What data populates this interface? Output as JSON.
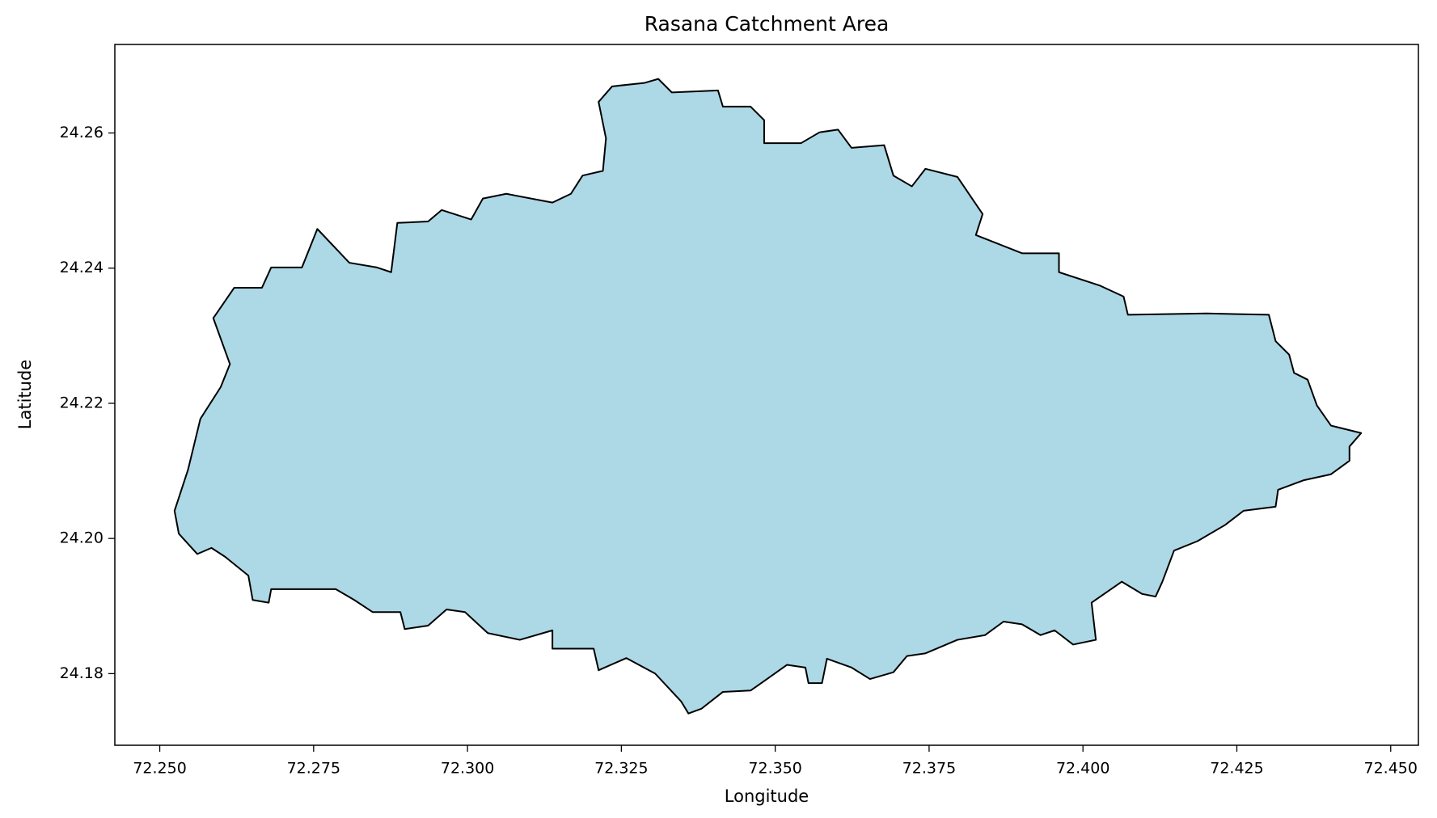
{
  "chart_data": {
    "type": "polygon",
    "title": "Rasana Catchment Area",
    "xlabel": "Longitude",
    "ylabel": "Latitude",
    "facecolor": "#add8e6",
    "edgecolor": "#000000",
    "xlim": [
      72.2427,
      72.4545
    ],
    "ylim": [
      24.1694,
      24.2731
    ],
    "xticks": [
      {
        "value": 72.25,
        "label": "72.250"
      },
      72.275,
      {
        "value": 72.3,
        "label": "72.300"
      },
      72.325,
      {
        "value": 72.35,
        "label": "72.350"
      },
      72.375,
      {
        "value": 72.4,
        "label": "72.400"
      },
      72.425,
      {
        "value": 72.45,
        "label": "72.450"
      }
    ],
    "yticks": [
      24.18,
      {
        "value": 24.2,
        "label": "24.20"
      },
      24.22,
      24.24,
      24.26
    ],
    "x": [
      72.2524,
      72.2546,
      72.2566,
      72.2599,
      72.2614,
      72.2587,
      72.2621,
      72.2666,
      72.2681,
      72.2731,
      72.2756,
      72.2808,
      72.2853,
      72.2876,
      72.2886,
      72.2936,
      72.2958,
      72.3006,
      72.3025,
      72.3063,
      72.3138,
      72.3168,
      72.3187,
      72.322,
      72.3225,
      72.3213,
      72.3235,
      72.3287,
      72.331,
      72.3332,
      72.3407,
      72.3415,
      72.346,
      72.3482,
      72.3482,
      72.3542,
      72.3572,
      72.3602,
      72.3624,
      72.3677,
      72.3692,
      72.3722,
      72.3744,
      72.3796,
      72.3837,
      72.3826,
      72.3901,
      72.3961,
      72.3961,
      72.4028,
      72.4066,
      72.4073,
      72.4201,
      72.4302,
      72.4313,
      72.4335,
      72.4343,
      72.4365,
      72.438,
      72.4403,
      72.4452,
      72.4433,
      72.4433,
      72.4403,
      72.4358,
      72.4317,
      72.4313,
      72.4261,
      72.4231,
      72.4186,
      72.4148,
      72.4129,
      72.4118,
      72.4096,
      72.4063,
      72.4014,
      72.4021,
      72.3984,
      72.3954,
      72.3931,
      72.3901,
      72.3871,
      72.3841,
      72.3796,
      72.3744,
      72.3714,
      72.3692,
      72.3654,
      72.3624,
      72.3584,
      72.3576,
      72.3554,
      72.3549,
      72.3519,
      72.3482,
      72.346,
      72.3415,
      72.338,
      72.3359,
      72.3347,
      72.3305,
      72.3258,
      72.3213,
      72.3205,
      72.3138,
      72.3138,
      72.3085,
      72.3033,
      72.2996,
      72.2966,
      72.2936,
      72.2898,
      72.2891,
      72.2846,
      72.2816,
      72.2786,
      72.2711,
      72.2681,
      72.2677,
      72.2651,
      72.2644,
      72.2606,
      72.2584,
      72.2561,
      72.2531
    ],
    "y": [
      24.2041,
      24.2102,
      24.2177,
      24.2224,
      24.2258,
      24.2326,
      24.2371,
      24.2371,
      24.2401,
      24.2401,
      24.2458,
      24.2408,
      24.2401,
      24.2394,
      24.2467,
      24.2469,
      24.2486,
      24.2472,
      24.2503,
      24.251,
      24.2497,
      24.251,
      24.2537,
      24.2544,
      24.2592,
      24.2646,
      24.2669,
      24.2674,
      24.268,
      24.266,
      24.2663,
      24.2639,
      24.2639,
      24.2619,
      24.2585,
      24.2585,
      24.2601,
      24.2605,
      24.2578,
      24.2582,
      24.2537,
      24.2521,
      24.2547,
      24.2535,
      24.248,
      24.2449,
      24.2422,
      24.2422,
      24.2394,
      24.2374,
      24.2358,
      24.2331,
      24.2333,
      24.2331,
      24.2292,
      24.2272,
      24.2245,
      24.2235,
      24.2197,
      24.2167,
      24.2156,
      24.2136,
      24.2115,
      24.2095,
      24.2086,
      24.2072,
      24.2047,
      24.2041,
      24.202,
      24.1996,
      24.1982,
      24.1936,
      24.1914,
      24.1918,
      24.1936,
      24.1905,
      24.185,
      24.1843,
      24.1864,
      24.1857,
      24.1873,
      24.1877,
      24.1857,
      24.185,
      24.183,
      24.1826,
      24.1802,
      24.1792,
      24.1809,
      24.1822,
      24.1786,
      24.1786,
      24.1809,
      24.1813,
      24.1789,
      24.1775,
      24.1773,
      24.1748,
      24.1741,
      24.1759,
      24.18,
      24.1823,
      24.1805,
      24.1837,
      24.1837,
      24.1864,
      24.185,
      24.186,
      24.1891,
      24.1895,
      24.1871,
      24.1866,
      24.1891,
      24.1891,
      24.1909,
      24.1925,
      24.1925,
      24.1925,
      24.1905,
      24.1909,
      24.1945,
      24.1973,
      24.1986,
      24.1977,
      24.2007
    ]
  }
}
